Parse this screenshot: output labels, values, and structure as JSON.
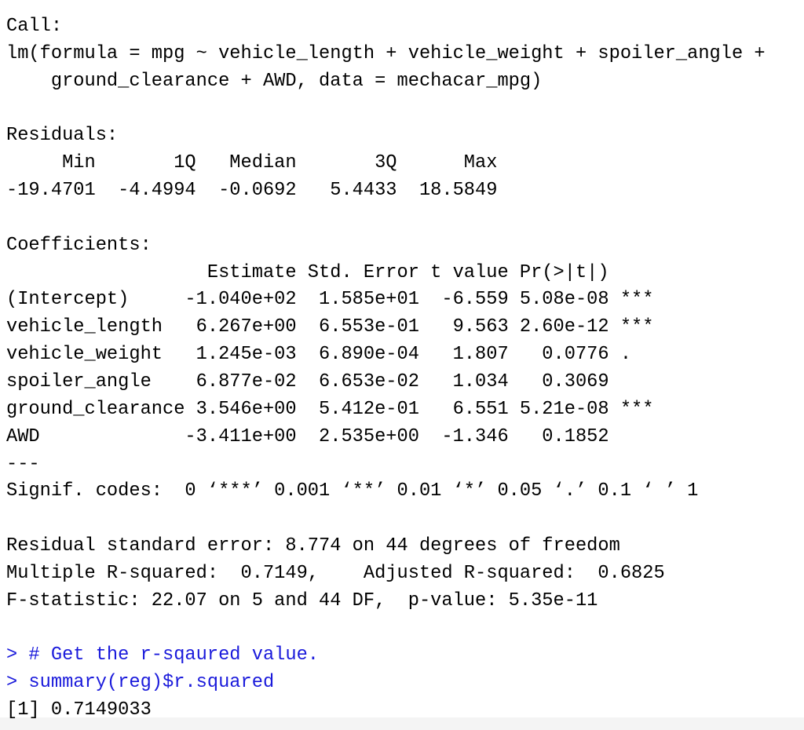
{
  "output_blocks": [
    [
      "Call:",
      "lm(formula = mpg ~ vehicle_length + vehicle_weight + spoiler_angle +",
      "    ground_clearance + AWD, data = mechacar_mpg)"
    ],
    [
      "Residuals:",
      "     Min       1Q   Median       3Q      Max",
      "-19.4701  -4.4994  -0.0692   5.4433  18.5849"
    ],
    [
      "Coefficients:",
      "                  Estimate Std. Error t value Pr(>|t|)",
      "(Intercept)     -1.040e+02  1.585e+01  -6.559 5.08e-08 ***",
      "vehicle_length   6.267e+00  6.553e-01   9.563 2.60e-12 ***",
      "vehicle_weight   1.245e-03  6.890e-04   1.807   0.0776 .",
      "spoiler_angle    6.877e-02  6.653e-02   1.034   0.3069",
      "ground_clearance 3.546e+00  5.412e-01   6.551 5.21e-08 ***",
      "AWD             -3.411e+00  2.535e+00  -1.346   0.1852",
      "---",
      "Signif. codes:  0 ‘***’ 0.001 ‘**’ 0.01 ‘*’ 0.05 ‘.’ 0.1 ‘ ’ 1"
    ],
    [
      "Residual standard error: 8.774 on 44 degrees of freedom",
      "Multiple R-squared:  0.7149,    Adjusted R-squared:  0.6825",
      "F-statistic: 22.07 on 5 and 44 DF,  p-value: 5.35e-11"
    ]
  ],
  "commands": [
    "> # Get the r-sqaured value.",
    "> summary(reg)$r.squared"
  ],
  "result": "[1] 0.7149033"
}
